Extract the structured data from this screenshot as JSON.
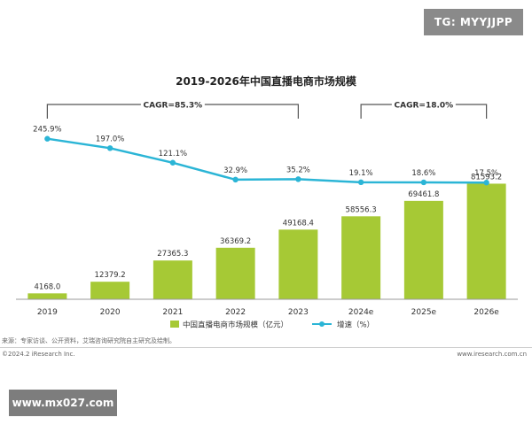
{
  "watermarks": {
    "top": "TG: MYYJJPP",
    "bottom": "www.mx027.com"
  },
  "footer": {
    "source": "来源：专家访谈、公开资料，艾瑞咨询研究院自主研究及绘制。",
    "copyright": "©2024.2 iResearch Inc.",
    "website": "www.iresearch.com.cn"
  },
  "colors": {
    "bar": "#a6c935",
    "line": "#2bb5d6",
    "bracket": "#555555"
  },
  "chart_data": {
    "type": "bar",
    "title": "2019-2026年中国直播电商市场规模",
    "categories": [
      "2019",
      "2020",
      "2021",
      "2022",
      "2023",
      "2024e",
      "2025e",
      "2026e"
    ],
    "series": [
      {
        "name": "中国直播电商市场规模（亿元）",
        "type": "bar",
        "values": [
          4168.0,
          12379.2,
          27365.3,
          36369.2,
          49168.4,
          58556.3,
          69461.8,
          81593.2
        ],
        "labels": [
          "4168.0",
          "12379.2",
          "27365.3",
          "36369.2",
          "49168.4",
          "58556.3",
          "69461.8",
          "81593.2"
        ]
      },
      {
        "name": "增速（%）",
        "type": "line",
        "values": [
          245.9,
          197.0,
          121.1,
          32.9,
          35.2,
          19.1,
          18.6,
          17.5
        ],
        "labels": [
          "245.9%",
          "197.0%",
          "121.1%",
          "32.9%",
          "35.2%",
          "19.1%",
          "18.6%",
          "17.5%"
        ]
      }
    ],
    "annotations": [
      {
        "text": "CAGR=85.3%",
        "from": "2019",
        "to": "2023"
      },
      {
        "text": "CAGR=18.0%",
        "from": "2024e",
        "to": "2026e"
      }
    ],
    "legend": "bottom",
    "grid": false
  }
}
